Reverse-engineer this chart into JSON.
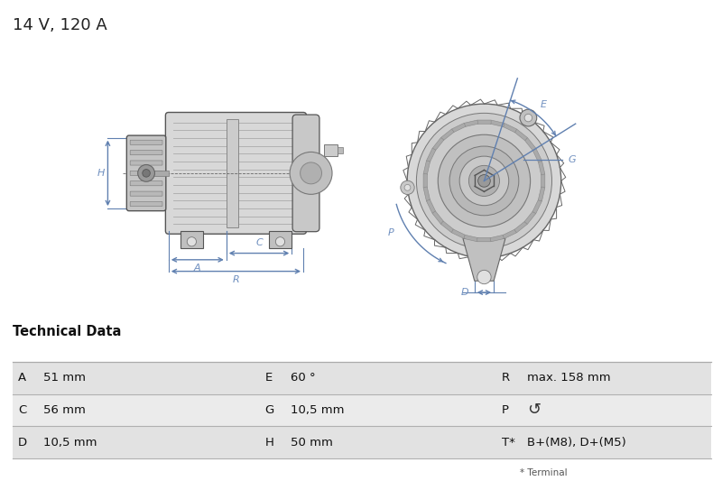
{
  "title": "14 V, 120 A",
  "title_fontsize": 13,
  "background_color": "#ffffff",
  "section_header": "Technical Data",
  "annotation_color": "#6080b0",
  "dim_color": "#7090c0",
  "body_color": "#d8d8d8",
  "body_edge": "#555555",
  "table_data": [
    [
      "A",
      "51 mm",
      "E",
      "60 °",
      "R",
      "max. 158 mm"
    ],
    [
      "C",
      "56 mm",
      "G",
      "10,5 mm",
      "P",
      "↺"
    ],
    [
      "D",
      "10,5 mm",
      "H",
      "50 mm",
      "T*",
      "B+(M8), D+(M5)"
    ]
  ],
  "footnote": "* Terminal"
}
